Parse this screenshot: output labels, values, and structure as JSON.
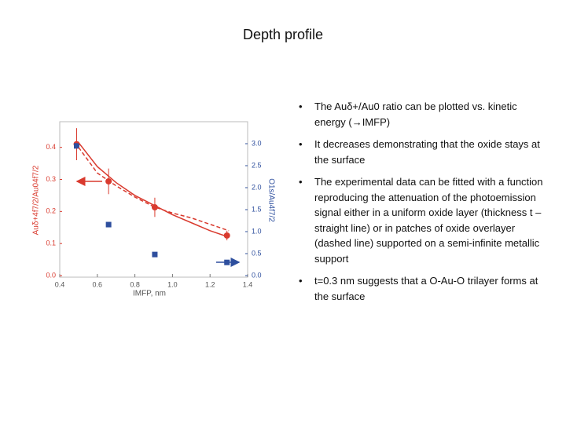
{
  "header": {
    "title": "Depth profile"
  },
  "bullets": [
    "The Auδ+/Au0 ratio can be plotted vs. kinetic energy (→IMFP)",
    "It decreases demonstrating that the oxide stays at the surface",
    "The experimental data can be fitted with a function reproducing the attenuation of the photoemission signal either in a uniform oxide layer (thickness t – straight line) or in patches of oxide overlayer (dashed line) supported on a semi-infinite metallic support",
    "t=0.3 nm suggests that a O-Au-O trilayer forms at the surface"
  ],
  "chart_data": {
    "type": "scatter",
    "x_label": "IMFP, nm",
    "y_label": "Auδ+4f7/2/Au04f7/2",
    "y2_label": "O1s/Au4f7/2",
    "xlim": [
      0.4,
      1.4
    ],
    "xticks": [
      0.4,
      0.6,
      0.8,
      {
        "value": 1.0,
        "label": "1.0"
      },
      1.2,
      1.4
    ],
    "ylim": [
      0,
      0.48
    ],
    "yticks": [
      {
        "value": 0,
        "label": "0.0"
      },
      0.1,
      0.2,
      0.3,
      0.4
    ],
    "y2lim": [
      0,
      3.5
    ],
    "y2ticks": [
      {
        "value": 0,
        "label": "0.0"
      },
      0.5,
      {
        "value": 1,
        "label": "1.0"
      },
      1.5,
      {
        "value": 2,
        "label": "2.0"
      },
      2.5,
      {
        "value": 3,
        "label": "3.0"
      }
    ],
    "series": [
      {
        "type": "scatter",
        "marker": "circle",
        "color": "#d93a2e",
        "axis": "y",
        "x": [
          0.49,
          0.66,
          0.906,
          1.29
        ],
        "values": [
          0.41,
          0.294,
          0.213,
          0.125
        ],
        "errors": [
          0.05,
          0.04,
          0.03,
          0.015
        ]
      },
      {
        "type": "scatter",
        "marker": "square",
        "color": "#2e4f9e",
        "axis": "y2",
        "x": [
          0.49,
          0.66,
          0.906,
          1.29
        ],
        "values": [
          2.95,
          1.16,
          0.48,
          0.3
        ]
      },
      {
        "type": "line",
        "style": "solid",
        "color": "#d93a2e",
        "axis": "y",
        "x": [
          0.5,
          0.6,
          0.7,
          0.8,
          0.9,
          1.0,
          1.1,
          1.2,
          1.3
        ],
        "values": [
          0.415,
          0.34,
          0.29,
          0.25,
          0.22,
          0.19,
          0.165,
          0.14,
          0.12
        ]
      },
      {
        "type": "line",
        "style": "dashed",
        "color": "#d93a2e",
        "axis": "y",
        "x": [
          0.5,
          0.6,
          0.7,
          0.8,
          0.9,
          1.0,
          1.1,
          1.2,
          1.3
        ],
        "values": [
          0.4,
          0.32,
          0.28,
          0.245,
          0.215,
          0.195,
          0.18,
          0.16,
          0.14
        ]
      }
    ]
  }
}
